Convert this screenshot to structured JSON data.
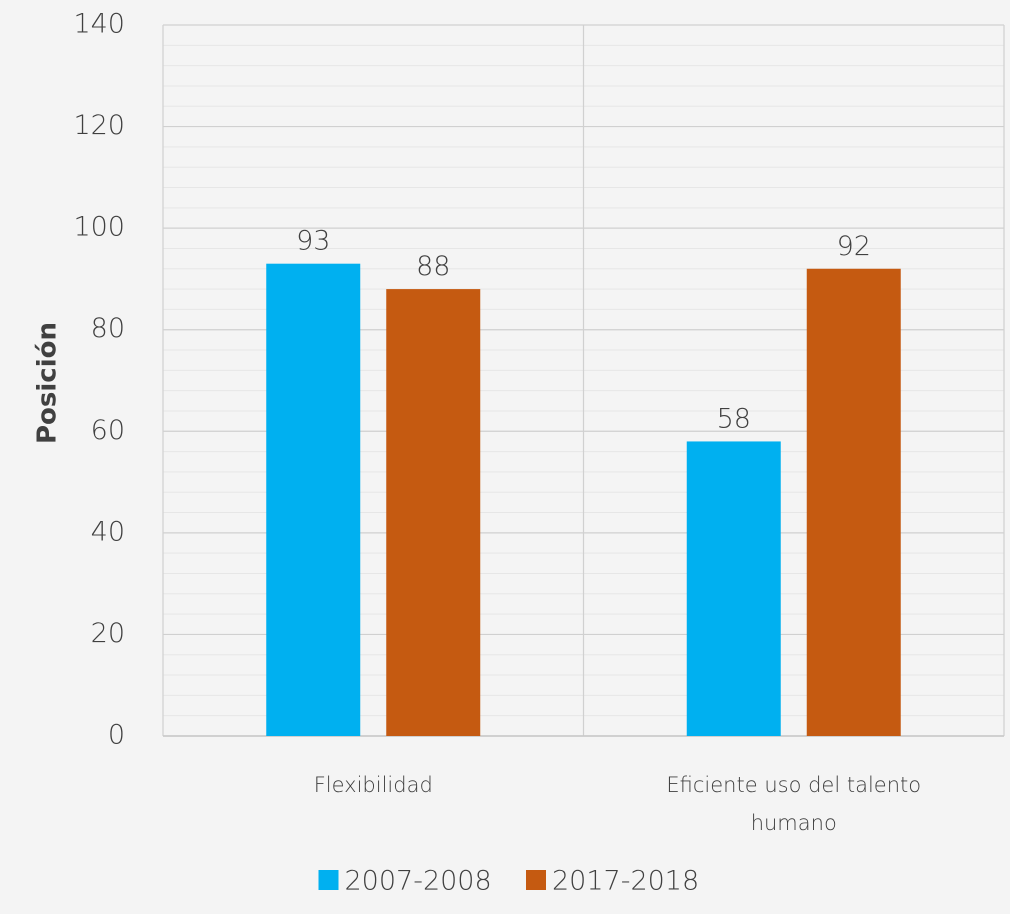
{
  "chart_data": {
    "type": "bar",
    "title": "",
    "xlabel": "",
    "ylabel": "Posición",
    "categories": [
      [
        "Flexibilidad"
      ],
      [
        "Eficiente uso del talento",
        "humano"
      ]
    ],
    "series": [
      {
        "name": "2007-2008",
        "values": [
          93,
          58
        ],
        "color": "#00b0f0"
      },
      {
        "name": "2017-2018",
        "values": [
          88,
          92
        ],
        "color": "#c55a11"
      }
    ],
    "ylim": [
      0,
      140
    ],
    "yticks": [
      0,
      20,
      40,
      60,
      80,
      100,
      120,
      140
    ],
    "minor_grid_step": 4,
    "grid": true,
    "legend_position": "bottom",
    "data_labels": true
  }
}
